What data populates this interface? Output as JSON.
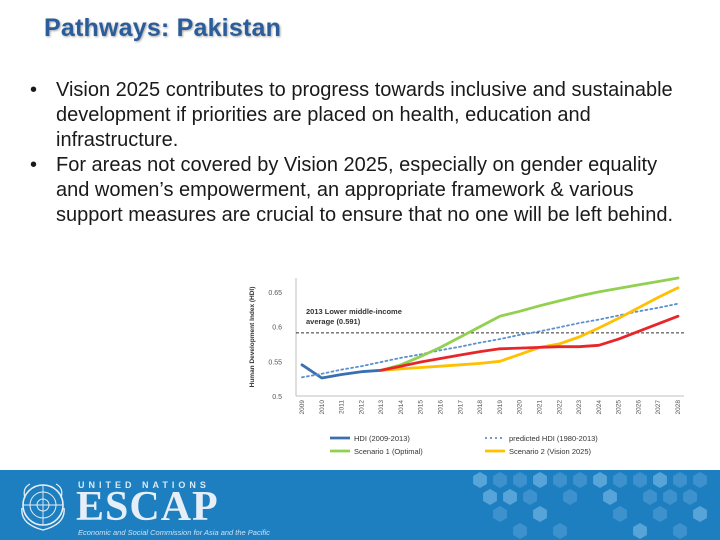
{
  "slide": {
    "title": "Pathways: Pakistan",
    "bullets": [
      "Vision 2025 contributes to progress towards inclusive and sustainable development if priorities are placed on health, education and infrastructure.",
      "For areas not covered by Vision 2025,  especially on gender equality and women’s empowerment,  an appropriate framework & various support measures are crucial to ensure that no one will be left behind."
    ]
  },
  "footer": {
    "org_top": "UNITED NATIONS",
    "org_main": "ESCAP",
    "org_sub": "Economic and Social Commission for Asia and the Pacific",
    "background_color": "#1e7fc0"
  },
  "chart_data": {
    "type": "line",
    "ylabel": "Human Development Index (HDI)",
    "ylim": [
      0.5,
      0.67
    ],
    "yticks": [
      "0.5",
      "0.55",
      "0.6",
      "0.65"
    ],
    "x": [
      "2009",
      "2010",
      "2011",
      "2012",
      "2013",
      "2014",
      "2015",
      "2016",
      "2017",
      "2018",
      "2019",
      "2020",
      "2021",
      "2022",
      "2023",
      "2024",
      "2025",
      "2026",
      "2027",
      "2028"
    ],
    "reference_line": {
      "value": 0.591,
      "label_lines": [
        "2013 Lower middle-income",
        "average (0.591)"
      ]
    },
    "series": [
      {
        "name": "HDI (2009-2013)",
        "color": "#3a6fb0",
        "dashed": false,
        "x": [
          "2009",
          "2010",
          "2011",
          "2012",
          "2013"
        ],
        "values": [
          0.545,
          0.526,
          0.531,
          0.535,
          0.537
        ]
      },
      {
        "name": "predicted HDI (1980-2013)",
        "color": "#5b8fd0",
        "dashed": true,
        "x": [
          "2009",
          "2010",
          "2011",
          "2012",
          "2013",
          "2014",
          "2015",
          "2016",
          "2017",
          "2018",
          "2019",
          "2020",
          "2021",
          "2022",
          "2023",
          "2024",
          "2025",
          "2026",
          "2027",
          "2028"
        ],
        "values": [
          0.527,
          0.532,
          0.538,
          0.543,
          0.549,
          0.555,
          0.56,
          0.566,
          0.571,
          0.577,
          0.582,
          0.588,
          0.593,
          0.599,
          0.605,
          0.61,
          0.616,
          0.622,
          0.627,
          0.633
        ]
      },
      {
        "name": "Scenario 1 (Optimal)",
        "color": "#92d050",
        "dashed": false,
        "x": [
          "2013",
          "2014",
          "2015",
          "2016",
          "2017",
          "2018",
          "2019",
          "2020",
          "2021",
          "2022",
          "2023",
          "2024",
          "2025",
          "2026",
          "2027",
          "2028"
        ],
        "values": [
          0.537,
          0.545,
          0.557,
          0.57,
          0.585,
          0.6,
          0.615,
          0.622,
          0.63,
          0.637,
          0.644,
          0.65,
          0.655,
          0.66,
          0.665,
          0.67
        ]
      },
      {
        "name": "Scenario 2 (Vision 2025)",
        "color": "#ffc000",
        "dashed": false,
        "x": [
          "2013",
          "2014",
          "2015",
          "2016",
          "2017",
          "2018",
          "2019",
          "2020",
          "2021",
          "2022",
          "2023",
          "2024",
          "2025",
          "2026",
          "2027",
          "2028"
        ],
        "values": [
          0.537,
          0.539,
          0.541,
          0.543,
          0.545,
          0.547,
          0.55,
          0.56,
          0.57,
          0.575,
          0.585,
          0.598,
          0.612,
          0.627,
          0.642,
          0.656
        ]
      },
      {
        "name": "",
        "color": "#e8262a",
        "dashed": false,
        "x": [
          "2013",
          "2014",
          "2015",
          "2016",
          "2017",
          "2018",
          "2019",
          "2020",
          "2021",
          "2022",
          "2023",
          "2024",
          "2025",
          "2026",
          "2027",
          "2028"
        ],
        "values": [
          0.537,
          0.543,
          0.549,
          0.554,
          0.559,
          0.564,
          0.568,
          0.569,
          0.57,
          0.571,
          0.571,
          0.573,
          0.582,
          0.593,
          0.604,
          0.615
        ]
      }
    ],
    "legend": [
      "HDI (2009-2013)",
      "predicted HDI (1980-2013)",
      "Scenario 1 (Optimal)",
      "Scenario 2 (Vision 2025)"
    ]
  }
}
